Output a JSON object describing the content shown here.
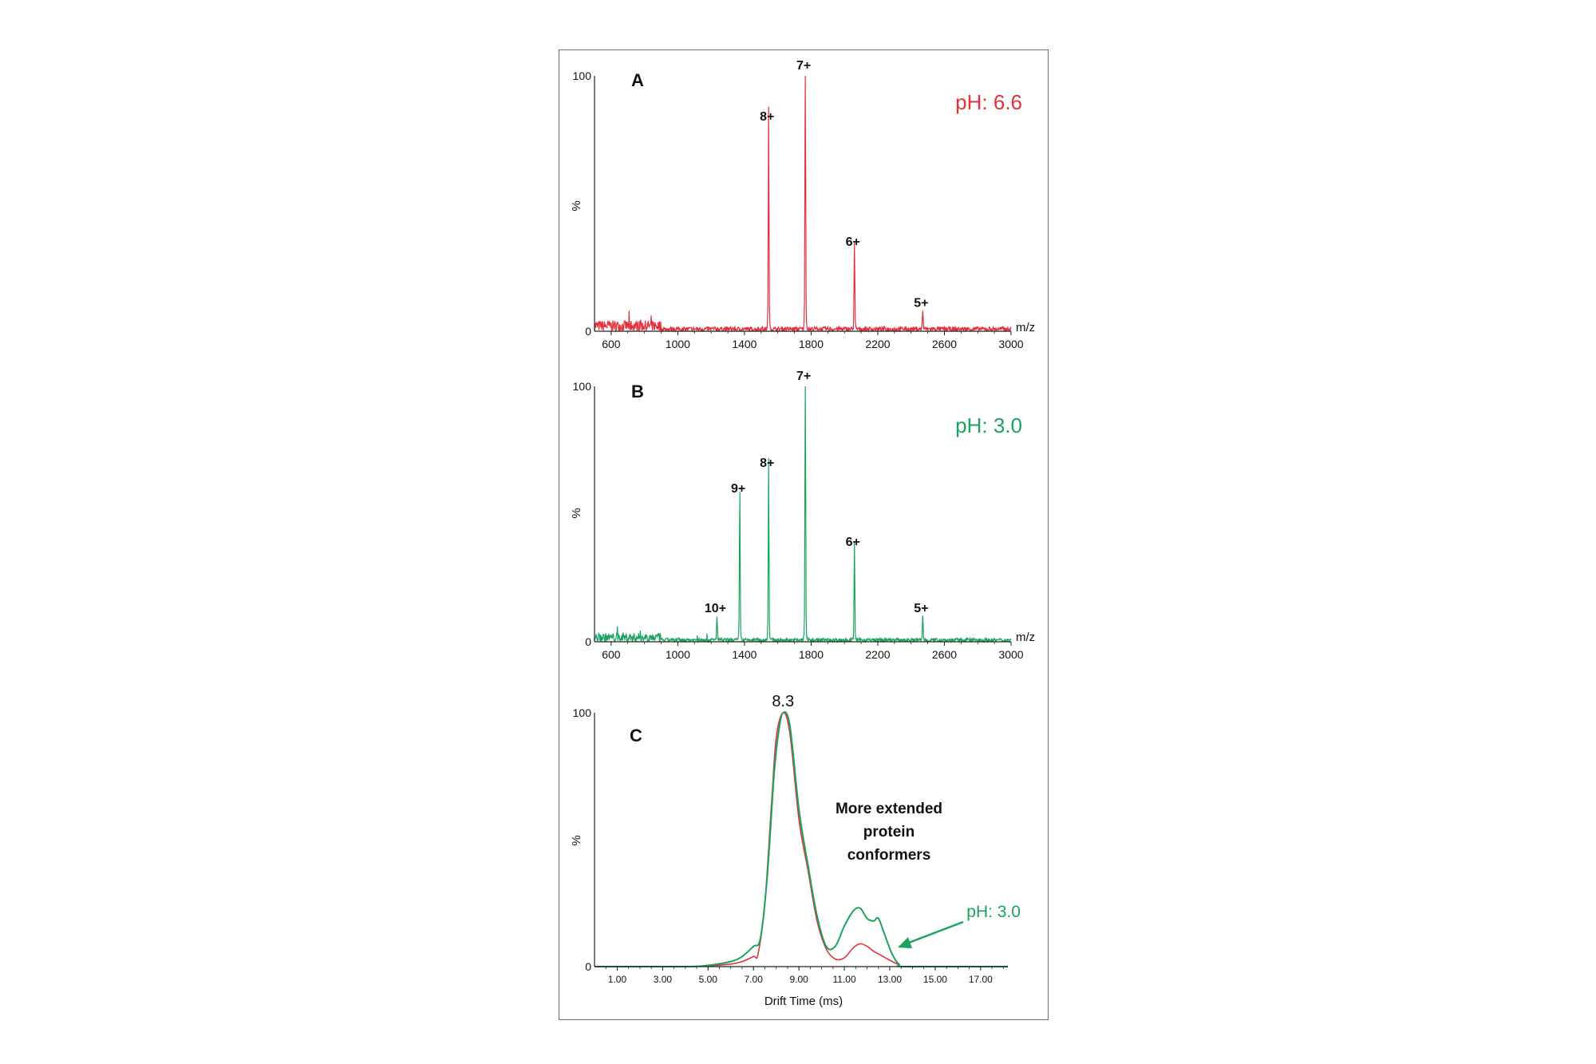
{
  "colors": {
    "red": "#e3303a",
    "green": "#1aa35f",
    "axis": "#222222",
    "frame": "#6f6f6f"
  },
  "chart_data": [
    {
      "type": "line",
      "panel": "A",
      "condition": "pH: 6.6",
      "series_color": "red",
      "xlabel": "m/z",
      "ylabel": "%",
      "xlim": [
        500,
        3000
      ],
      "ylim": [
        0,
        100
      ],
      "x_ticks": [
        "600",
        "1000",
        "1400",
        "1800",
        "2200",
        "2600",
        "3000"
      ],
      "y_ticks": [
        "0",
        "100"
      ],
      "peaks": [
        {
          "label": "8+",
          "x": 1545,
          "y": 80
        },
        {
          "label": "7+",
          "x": 1765,
          "y": 100
        },
        {
          "label": "6+",
          "x": 2060,
          "y": 31
        },
        {
          "label": "5+",
          "x": 2470,
          "y": 7
        }
      ],
      "baseline_noise": 2.5
    },
    {
      "type": "line",
      "panel": "B",
      "condition": "pH: 3.0",
      "series_color": "green",
      "xlabel": "m/z",
      "ylabel": "%",
      "xlim": [
        500,
        3000
      ],
      "ylim": [
        0,
        100
      ],
      "x_ticks": [
        "600",
        "1000",
        "1400",
        "1800",
        "2200",
        "2600",
        "3000"
      ],
      "y_ticks": [
        "0",
        "100"
      ],
      "peaks": [
        {
          "label": "10+",
          "x": 1235,
          "y": 9
        },
        {
          "label": "9+",
          "x": 1372,
          "y": 56
        },
        {
          "label": "8+",
          "x": 1545,
          "y": 66
        },
        {
          "label": "7+",
          "x": 1765,
          "y": 100
        },
        {
          "label": "6+",
          "x": 2060,
          "y": 35
        },
        {
          "label": "5+",
          "x": 2470,
          "y": 9
        }
      ],
      "baseline_noise": 2.0
    },
    {
      "type": "line",
      "panel": "C",
      "xlabel": "Drift Time (ms)",
      "ylabel": "%",
      "xlim": [
        0.0,
        18.2
      ],
      "ylim": [
        0,
        100
      ],
      "x_ticks": [
        "1.00",
        "3.00",
        "5.00",
        "7.00",
        "9.00",
        "11.00",
        "13.00",
        "15.00",
        "17.00"
      ],
      "y_ticks": [
        "0",
        "100"
      ],
      "apex_label": "8.3",
      "annotation": [
        "More extended",
        "protein",
        "conformers"
      ],
      "arrow_label": "pH: 3.0",
      "series": [
        {
          "color": "red",
          "x": [
            0.0,
            4.0,
            5.0,
            6.0,
            6.5,
            7.0,
            7.2,
            7.5,
            7.8,
            8.0,
            8.3,
            8.6,
            9.0,
            9.4,
            9.8,
            10.2,
            10.6,
            11.0,
            11.4,
            11.7,
            12.0,
            12.3,
            12.6,
            13.0,
            13.4,
            13.8,
            18.2
          ],
          "y": [
            0,
            0,
            0.3,
            1,
            2,
            4,
            5,
            25,
            65,
            90,
            100,
            92,
            58,
            38,
            18,
            7,
            3,
            3.5,
            7.5,
            9,
            8,
            6,
            4.5,
            2.5,
            0.8,
            0,
            0
          ]
        },
        {
          "color": "green",
          "x": [
            0.0,
            4.0,
            5.0,
            6.0,
            6.5,
            7.0,
            7.3,
            7.6,
            7.9,
            8.1,
            8.3,
            8.6,
            9.0,
            9.4,
            9.8,
            10.2,
            10.6,
            11.0,
            11.4,
            11.7,
            12.0,
            12.3,
            12.5,
            12.8,
            13.1,
            13.4,
            13.8,
            18.2
          ],
          "y": [
            0,
            0,
            0.5,
            2,
            4,
            8,
            11,
            35,
            75,
            92,
            100,
            95,
            62,
            40,
            20,
            8,
            8,
            16,
            22,
            23,
            19,
            18,
            19,
            12,
            5,
            1,
            0,
            0
          ]
        }
      ]
    }
  ]
}
